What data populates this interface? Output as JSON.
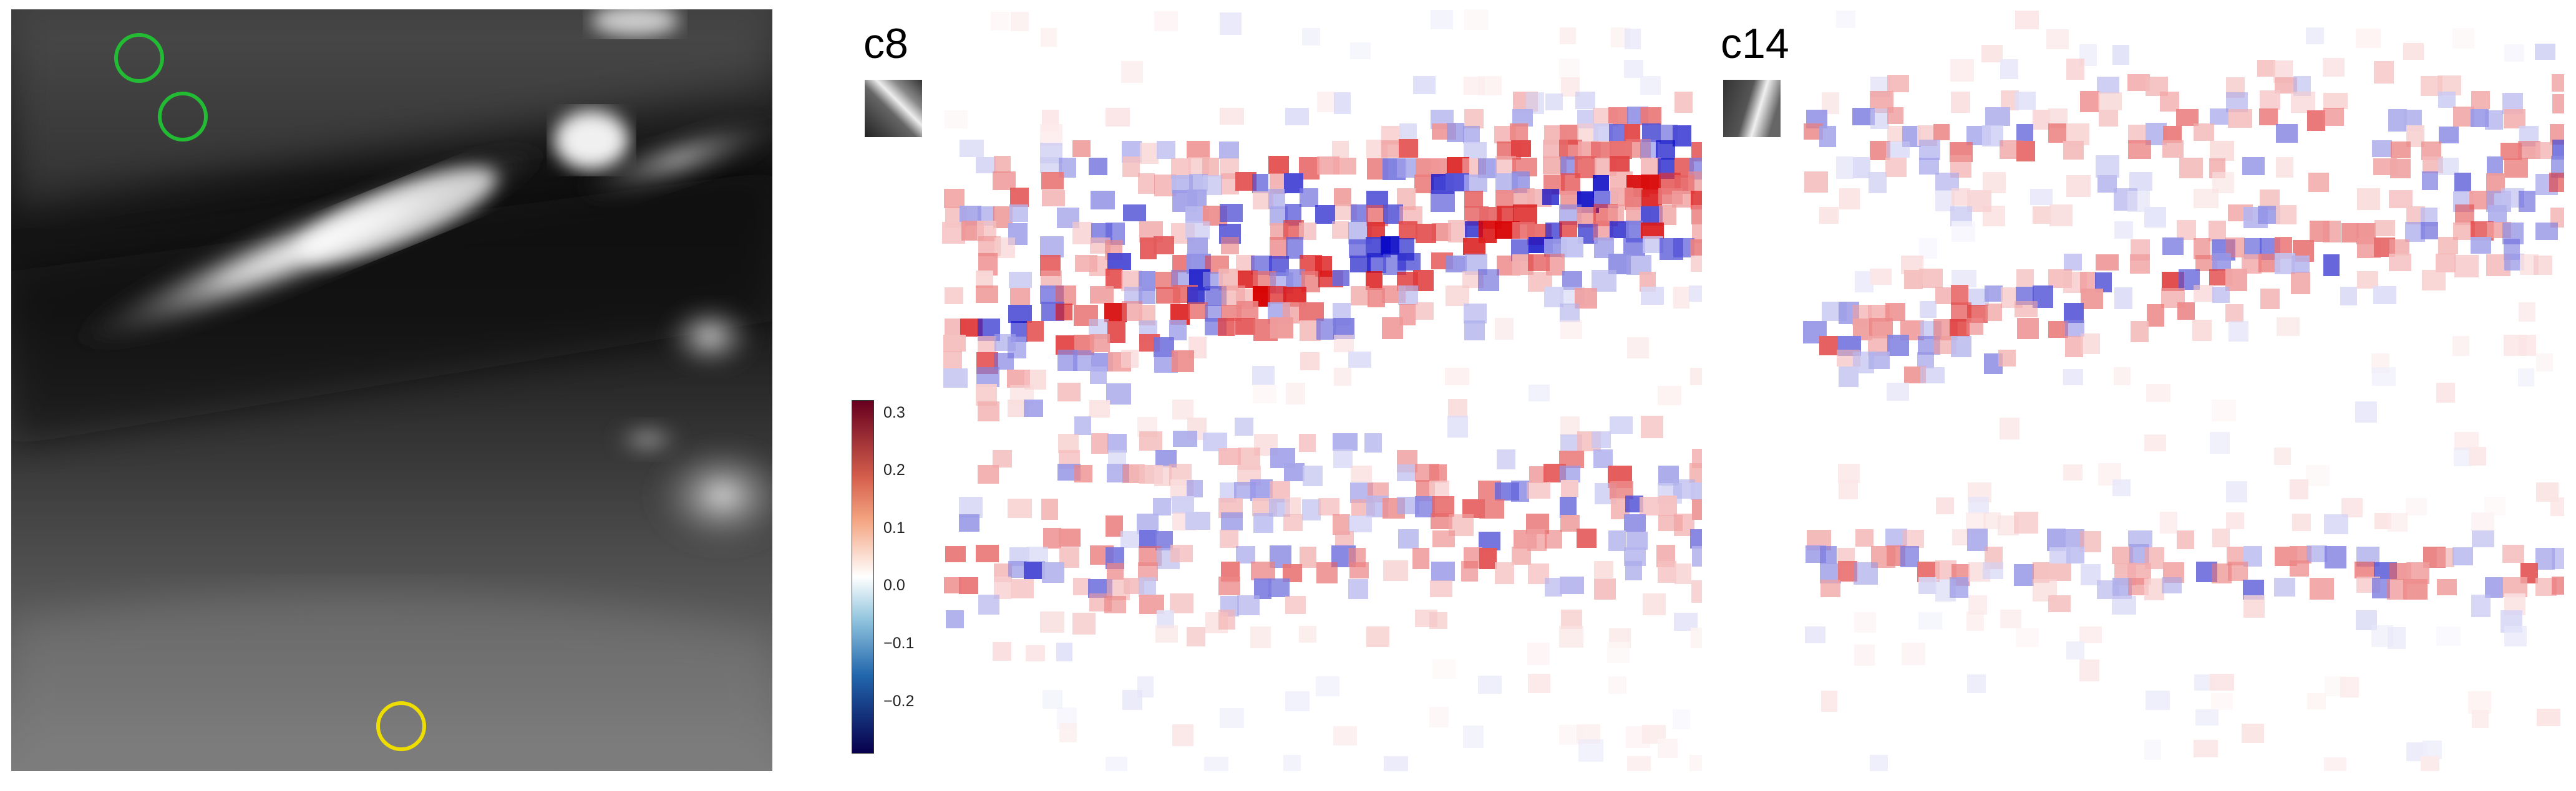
{
  "panels": {
    "grayscale": {
      "markers": [
        {
          "color": "#22bb33"
        },
        {
          "color": "#22bb33"
        },
        {
          "color": "#eedd00"
        }
      ]
    },
    "c8": {
      "label": "c8"
    },
    "c14": {
      "label": "c14"
    }
  },
  "colorbar": {
    "ticks": [
      "0.3",
      "0.2",
      "0.1",
      "0.0",
      "−0.1",
      "−0.2"
    ],
    "values": [
      0.3,
      0.2,
      0.1,
      0.0,
      -0.1,
      -0.2
    ],
    "vmin": -0.29,
    "vmax": 0.32,
    "colormap": "seismic-like (blue–white–red)"
  }
}
